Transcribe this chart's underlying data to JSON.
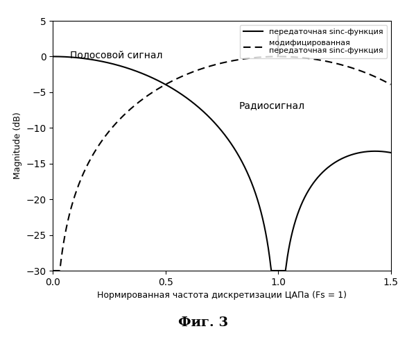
{
  "title": "",
  "xlabel": "Нормированная частота дискретизации ЦАПа (Fs = 1)",
  "ylabel": "Magnitude (dB)",
  "xlim": [
    0,
    1.5
  ],
  "ylim": [
    -30,
    5
  ],
  "xticks": [
    0,
    0.5,
    1.0,
    1.5
  ],
  "yticks": [
    -30,
    -25,
    -20,
    -15,
    -10,
    -5,
    0,
    5
  ],
  "legend_solid": "передаточная sinc-функция",
  "legend_dashed": "модифицированная\nпередаточная sinc-функция",
  "label_bandpass": "Полосовой сигнал",
  "label_radio": "Радиосигнал",
  "fig_title": "Фиг. 3",
  "background_color": "#ffffff",
  "line_color": "#000000"
}
